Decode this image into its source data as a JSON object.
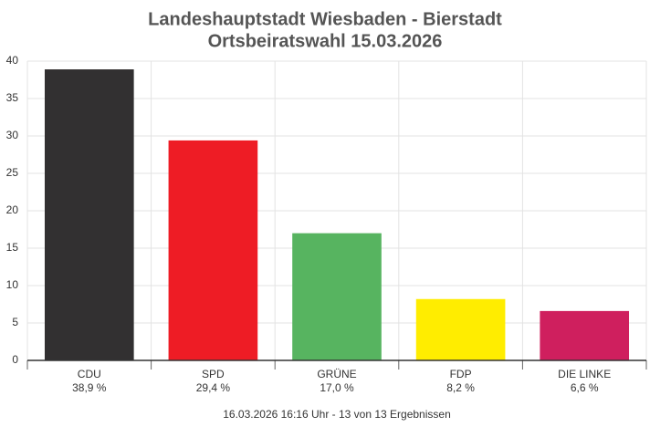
{
  "chart_data": {
    "type": "bar",
    "title": "Landeshauptstadt Wiesbaden - Bierstadt",
    "subtitle": "Ortsbeiratswahl 15.03.2026",
    "categories": [
      "CDU",
      "SPD",
      "GRÜNE",
      "FDP",
      "DIE LINKE"
    ],
    "values": [
      38.9,
      29.4,
      17.0,
      8.2,
      6.6
    ],
    "value_labels": [
      "38,9 %",
      "29,4 %",
      "17,0 %",
      "8,2 %",
      "6,6 %"
    ],
    "colors": [
      "#323031",
      "#ee1c25",
      "#57b460",
      "#ffed00",
      "#cf1f5e"
    ],
    "ylim": [
      0,
      40
    ],
    "yticks": [
      0,
      5,
      10,
      15,
      20,
      25,
      30,
      35,
      40
    ],
    "grid": true,
    "note": "16.03.2026 16:16 Uhr - 13 von 13 Ergebnissen"
  }
}
